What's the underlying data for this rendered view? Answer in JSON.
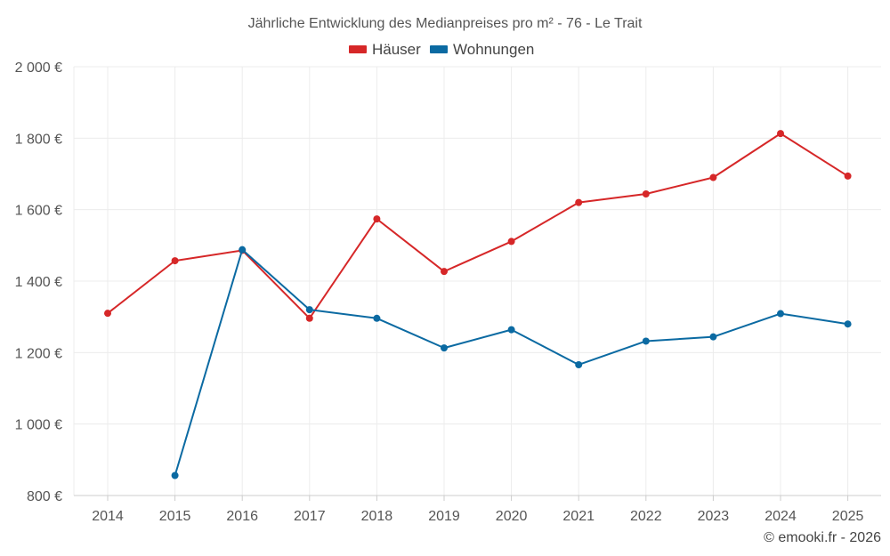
{
  "chart_data": {
    "type": "line",
    "title": "Jährliche Entwicklung des Medianpreises pro m² - 76 - Le Trait",
    "xlabel": "",
    "ylabel": "",
    "categories": [
      "2014",
      "2015",
      "2016",
      "2017",
      "2018",
      "2019",
      "2020",
      "2021",
      "2022",
      "2023",
      "2024",
      "2025"
    ],
    "ylim": [
      800,
      2000
    ],
    "yticks": [
      800,
      1000,
      1200,
      1400,
      1600,
      1800,
      2000
    ],
    "ytick_labels": [
      "800 €",
      "1 000 €",
      "1 200 €",
      "1 400 €",
      "1 600 €",
      "1 800 €",
      "2 000 €"
    ],
    "grid": true,
    "legend_position": "top-center",
    "series": [
      {
        "name": "Häuser",
        "color": "#d62728",
        "values": [
          1310,
          1457,
          1486,
          1296,
          1574,
          1427,
          1511,
          1620,
          1644,
          1690,
          1813,
          1694
        ]
      },
      {
        "name": "Wohnungen",
        "color": "#0b6aa2",
        "values": [
          null,
          856,
          1488,
          1320,
          1296,
          1213,
          1264,
          1166,
          1232,
          1244,
          1309,
          1280
        ]
      }
    ]
  },
  "footer": {
    "copyright": "© emooki.fr - 2026"
  }
}
